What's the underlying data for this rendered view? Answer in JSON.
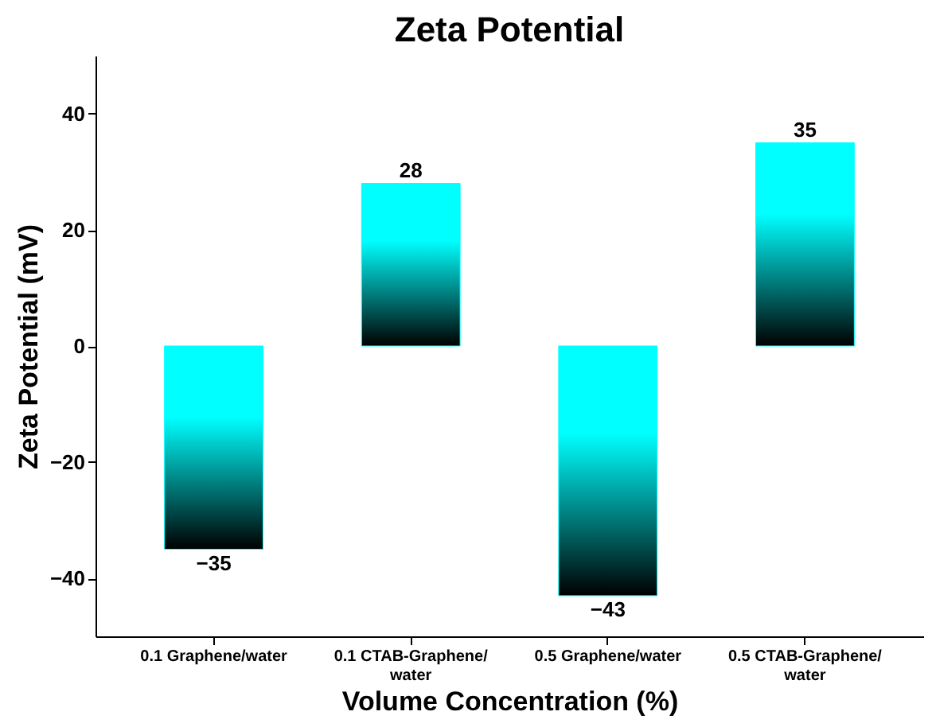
{
  "chart_data": {
    "type": "bar",
    "title": "Zeta Potential",
    "xlabel": "Volume Concentration (%)",
    "ylabel": "Zeta Potential (mV)",
    "categories": [
      "0.1 Graphene/water",
      "0.1 CTAB-Graphene/water",
      "0.5 Graphene/water",
      "0.5 CTAB-Graphene/water"
    ],
    "values": [
      -35,
      28,
      -43,
      35
    ],
    "color": "#00ffff",
    "ylim": [
      -50,
      50
    ],
    "yticks": [
      -40,
      -20,
      0,
      20,
      40
    ],
    "data_labels": true,
    "grid": false
  }
}
